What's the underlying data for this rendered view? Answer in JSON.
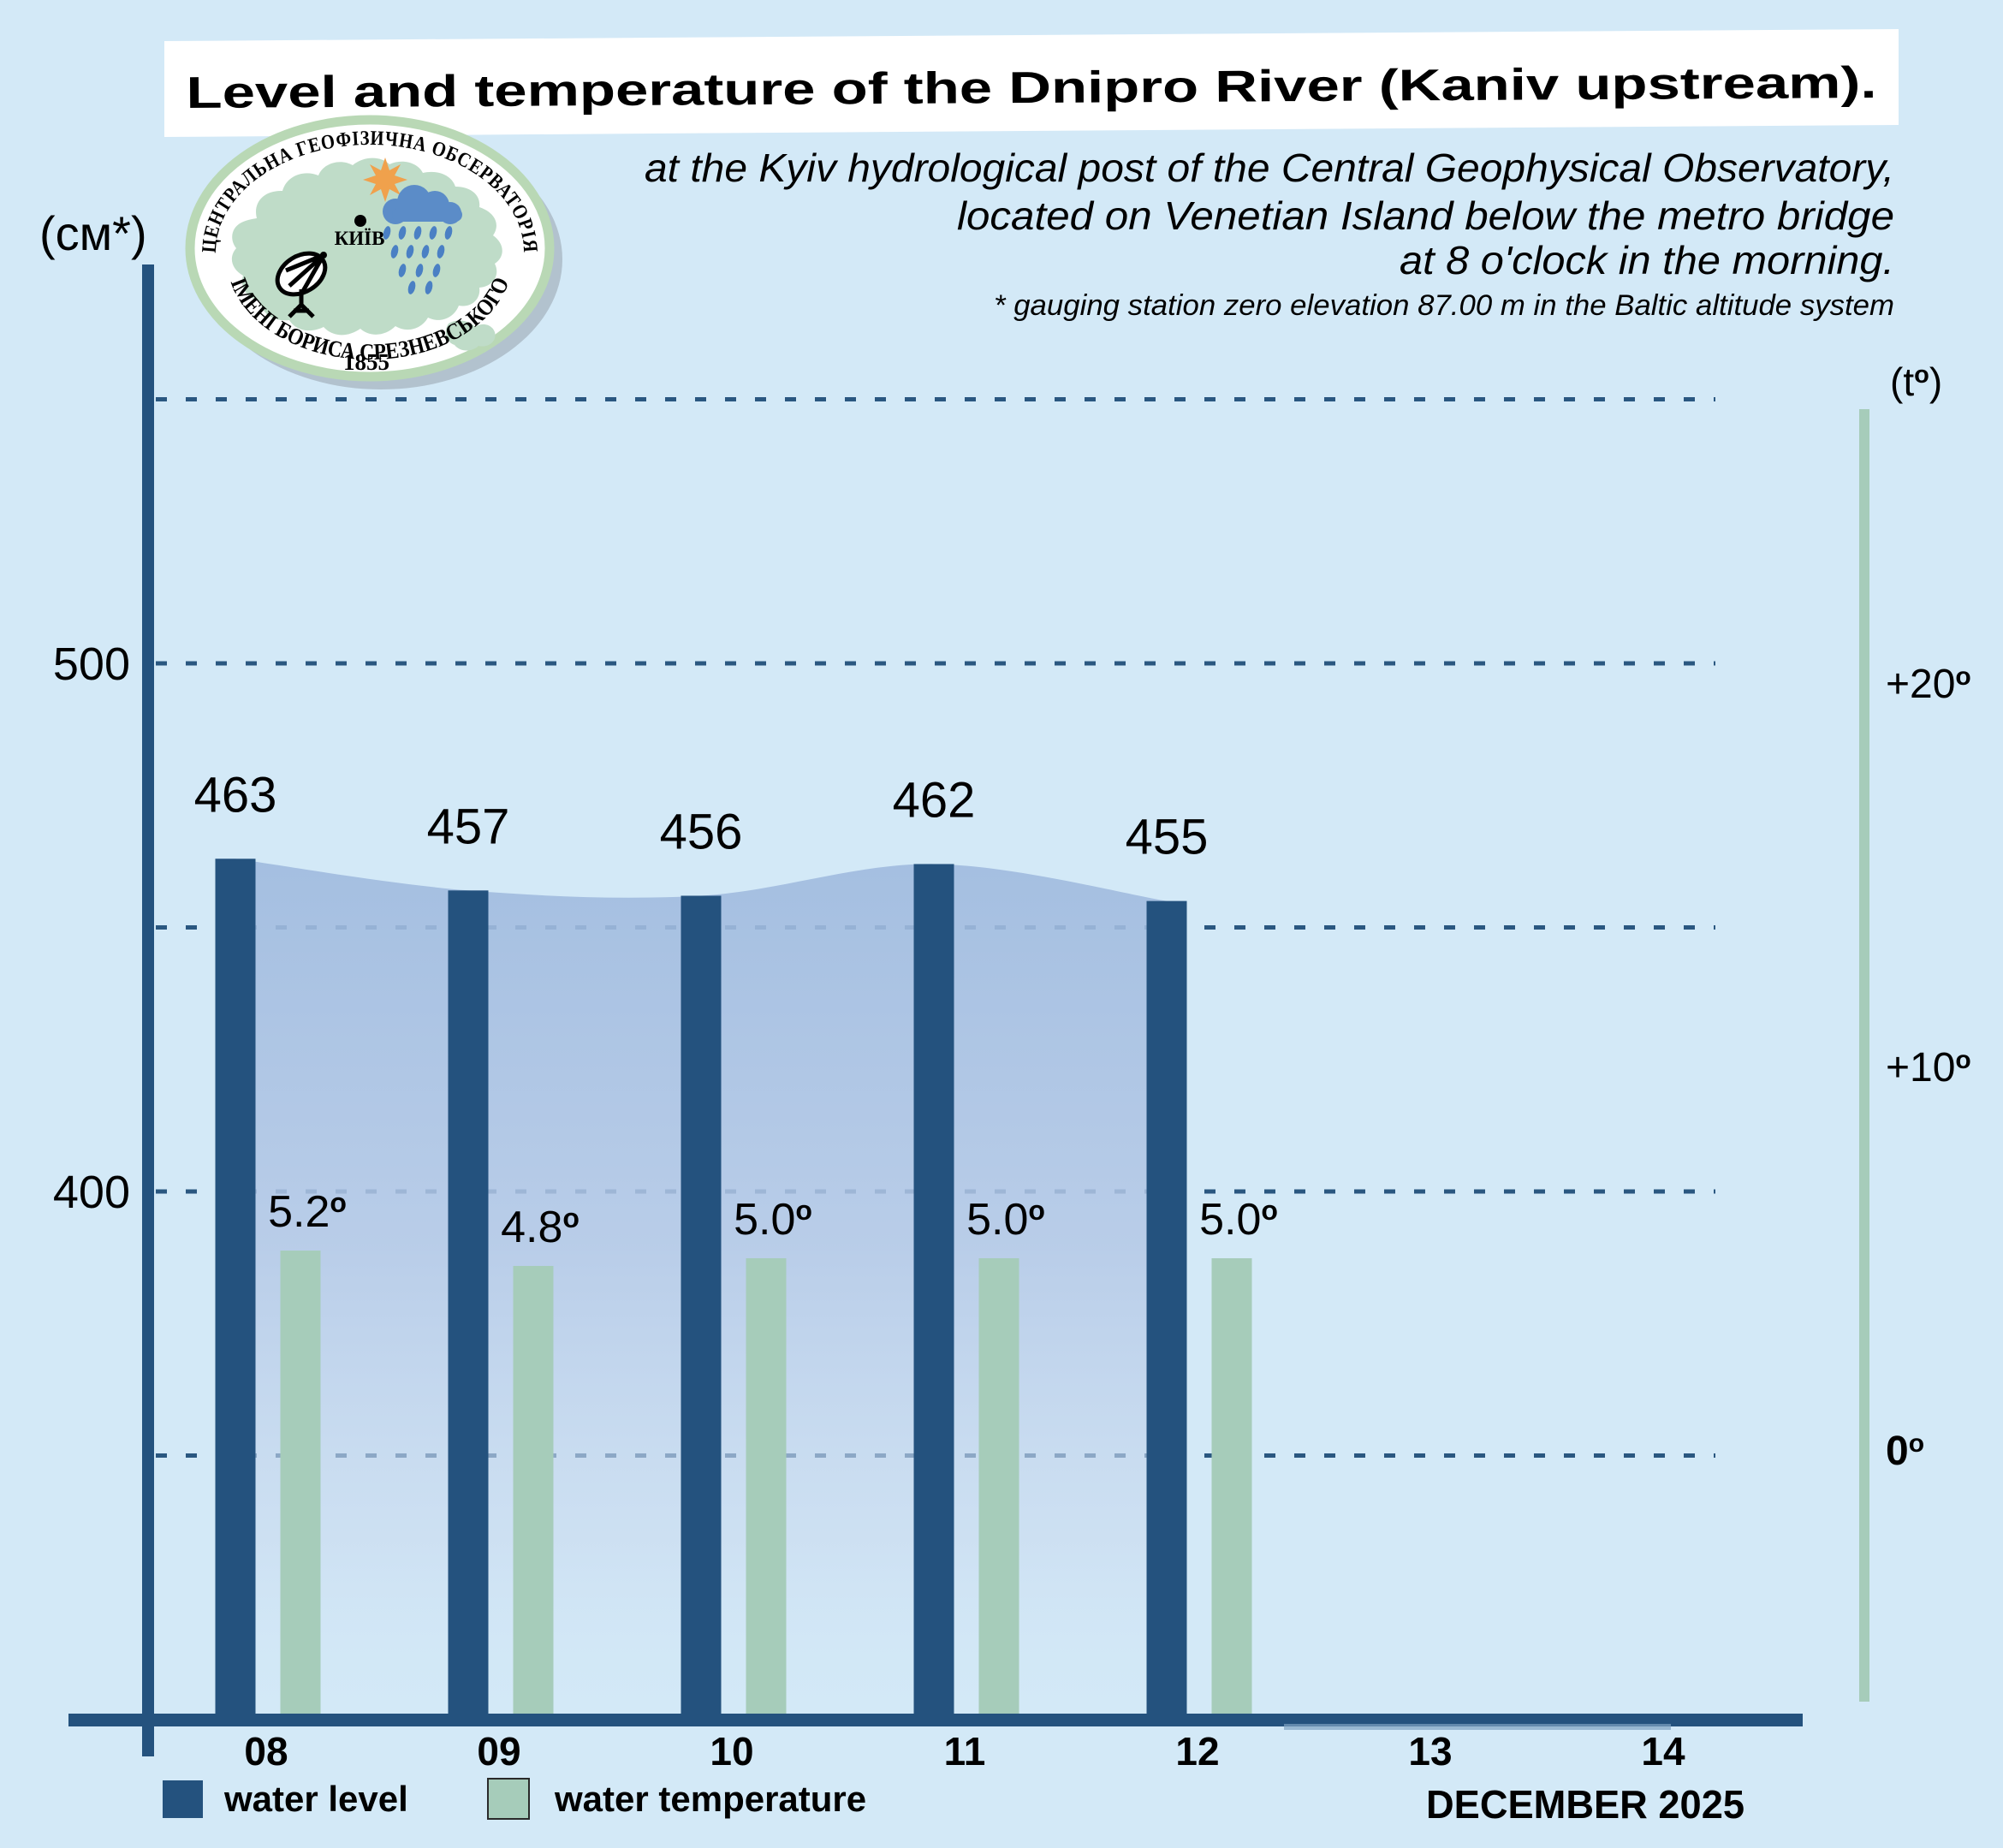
{
  "header": {
    "title": "Level and temperature of the Dnipro River (Kaniv upstream).",
    "subtitle_lines": [
      "at the Kyiv hydrological post of the Central Geophysical Observatory,",
      "located on Venetian Island below the metro bridge",
      "at 8 o'clock in the morning."
    ],
    "footnote": "* gauging station zero elevation 87.00 m in the Baltic altitude system"
  },
  "logo": {
    "ring_top": "ЦЕНТРАЛЬНА ГЕОФІЗИЧНА ОБСЕРВАТОРІЯ",
    "ring_bottom": "ІМЕНІ БОРИСА СРЕЗНЕВСЬКОГО",
    "year": "1855",
    "city": "КИЇВ"
  },
  "legend": [
    {
      "label": "water level",
      "color_key": "navy"
    },
    {
      "label": "water temperature",
      "color_key": "green"
    }
  ],
  "chart_data": {
    "type": "bar",
    "categories": [
      "08",
      "09",
      "10",
      "11",
      "12",
      "13",
      "14"
    ],
    "x_axis": {
      "month_label": "DECEMBER 2025"
    },
    "series": [
      {
        "name": "water level",
        "unit": "cm",
        "color_key": "navy",
        "values": [
          463,
          457,
          456,
          462,
          455,
          null,
          null
        ],
        "labels": [
          "463",
          "457",
          "456",
          "462",
          "455",
          null,
          null
        ]
      },
      {
        "name": "water temperature",
        "unit": "°C",
        "color_key": "green",
        "values": [
          5.2,
          4.8,
          5.0,
          5.0,
          5.0,
          null,
          null
        ],
        "labels": [
          "5.2°",
          "4.8°",
          "5.0°",
          "5.0°",
          "5.0°",
          null,
          null
        ]
      }
    ],
    "level_axis": {
      "unit": "(см*)",
      "labeled_ticks": [
        500,
        400
      ],
      "gridlines": [
        550,
        500,
        450,
        400,
        350
      ],
      "min": 300
    },
    "temp_axis": {
      "unit": "(t°)",
      "ticks": [
        {
          "label": "+20°",
          "value": 20,
          "bold": false
        },
        {
          "label": "+10°",
          "value": 10,
          "bold": false
        },
        {
          "label": "0°",
          "value": 0,
          "bold": true
        }
      ]
    },
    "area_fill_between_level_bars": true,
    "legend_position": "bottom-left",
    "grid": "dashed-horizontal"
  },
  "colors": {
    "background": "#d3e9f7",
    "navy": "#24527e",
    "green": "#a6ccba",
    "gridline": "#2a5780",
    "area_top": "#9fbade",
    "area_mid": "#b4c8e6",
    "area_low": "#c9daef",
    "area_fade": "#d3e9f7",
    "axis_underline": "#7fa3c2",
    "title_bg": "#ffffff",
    "text": "#000000",
    "logo_ring": "#b9d8b5",
    "logo_map": "#bfdcc8",
    "logo_cloud": "#5b8cc8",
    "logo_rain": "#4a80c4",
    "logo_sun": "#f0a14c",
    "logo_shadow": "#929ca6"
  }
}
